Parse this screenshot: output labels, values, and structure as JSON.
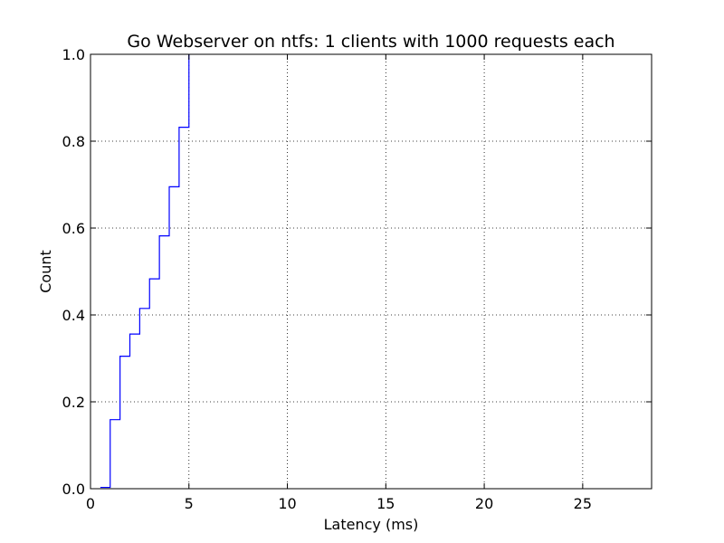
{
  "chart_data": {
    "type": "line",
    "drawstyle": "steps-post",
    "title": "Go Webserver on ntfs: 1 clients with 1000 requests each",
    "xlabel": "Latency (ms)",
    "ylabel": "Count",
    "xlim": [
      0,
      28.5
    ],
    "ylim": [
      0,
      1.0
    ],
    "grid": true,
    "grid_style": "dotted",
    "line_color": "#0000ff",
    "xticks": [
      0,
      5,
      10,
      15,
      20,
      25
    ],
    "xtick_labels": [
      "0",
      "5",
      "10",
      "15",
      "20",
      "25"
    ],
    "yticks": [
      0.0,
      0.2,
      0.4,
      0.6,
      0.8,
      1.0
    ],
    "ytick_labels": [
      "0.0",
      "0.2",
      "0.4",
      "0.6",
      "0.8",
      "1.0"
    ],
    "series": [
      {
        "x": [
          0.5,
          1.0,
          1.5,
          2.0,
          2.5,
          3.0,
          3.5,
          4.0,
          4.5,
          5.0
        ],
        "y": [
          0.003,
          0.159,
          0.305,
          0.356,
          0.415,
          0.483,
          0.582,
          0.695,
          0.832,
          0.835
        ]
      }
    ],
    "final_x": 5.0,
    "final_y": 1.0
  }
}
